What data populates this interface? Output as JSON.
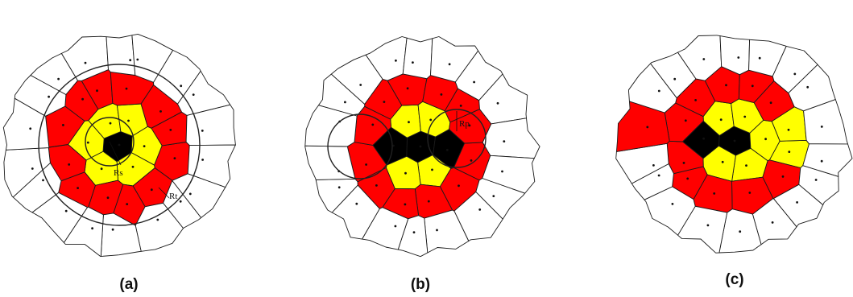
{
  "panels": [
    {
      "label": "(a)",
      "annotations": [
        "Rs",
        "Rt"
      ]
    },
    {
      "label": "(b)",
      "annotations": [
        "Rp"
      ]
    },
    {
      "label": "(c)",
      "annotations": []
    }
  ],
  "colors": {
    "target": "#000000",
    "inner_ring": "#ffff00",
    "outer_ring": "#ff0000",
    "outside": "#ffffff",
    "edge": "#1a1a1a"
  }
}
